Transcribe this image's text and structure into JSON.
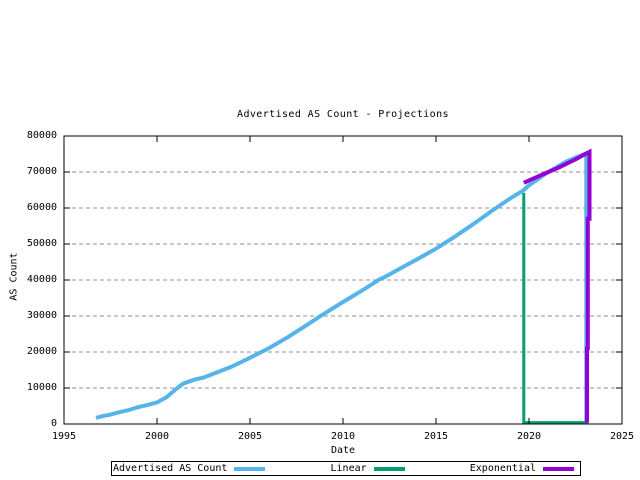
{
  "title": "Advertised AS Count - Projections",
  "chart_data": {
    "type": "line",
    "title": "Advertised AS Count - Projections",
    "xlabel": "Date",
    "ylabel": "AS Count",
    "xlim": [
      1995,
      2025
    ],
    "ylim": [
      0,
      80000
    ],
    "xticks": [
      "1995",
      "2000",
      "2005",
      "2010",
      "2015",
      "2020",
      "2025"
    ],
    "ytick_values": [
      0,
      10000,
      20000,
      30000,
      40000,
      50000,
      60000,
      70000,
      80000
    ],
    "ytick_labels": [
      "0",
      "10000",
      "20000",
      "30000",
      "40000",
      "50000",
      "60000",
      "70000",
      "80000"
    ],
    "xtick_values": [
      1995,
      2000,
      2005,
      2010,
      2015,
      2020,
      2025
    ],
    "grid": "horizontal-dashed",
    "grid_color": "#909090",
    "legend_position": "bottom-center",
    "series": [
      {
        "name": "Advertised AS Count",
        "color": "#56b4e9",
        "width": 4,
        "points": [
          [
            1996.72,
            1700
          ],
          [
            1997,
            2100
          ],
          [
            1997.5,
            2600
          ],
          [
            1998,
            3300
          ],
          [
            1998.5,
            3900
          ],
          [
            1999,
            4700
          ],
          [
            1999.5,
            5300
          ],
          [
            2000,
            6000
          ],
          [
            2000.5,
            7400
          ],
          [
            2001,
            9600
          ],
          [
            2001.4,
            11200
          ],
          [
            2002,
            12300
          ],
          [
            2002.5,
            12900
          ],
          [
            2003,
            13900
          ],
          [
            2004,
            15900
          ],
          [
            2005,
            18400
          ],
          [
            2006,
            21000
          ],
          [
            2007,
            24000
          ],
          [
            2008,
            27300
          ],
          [
            2009,
            30700
          ],
          [
            2010,
            33900
          ],
          [
            2011,
            37000
          ],
          [
            2012,
            40300
          ],
          [
            2012.2,
            40700
          ],
          [
            2013,
            43000
          ],
          [
            2014,
            45800
          ],
          [
            2015,
            48700
          ],
          [
            2016,
            52000
          ],
          [
            2017,
            55500
          ],
          [
            2018,
            59200
          ],
          [
            2019,
            62700
          ],
          [
            2019.7,
            64900
          ],
          [
            2020,
            66300
          ],
          [
            2021,
            69900
          ],
          [
            2022,
            72900
          ],
          [
            2023.08,
            75200
          ],
          [
            2023.08,
            400
          ]
        ]
      },
      {
        "name": "Linear",
        "color": "#009e73",
        "width": 3,
        "points": [
          [
            2019.72,
            64200
          ],
          [
            2019.72,
            400
          ],
          [
            2023.2,
            400
          ]
        ]
      },
      {
        "name": "Exponential",
        "color": "#9400d3",
        "width": 4,
        "points": [
          [
            2019.72,
            67000
          ],
          [
            2020.5,
            68800
          ],
          [
            2021.5,
            71000
          ],
          [
            2022.5,
            73500
          ],
          [
            2023.25,
            75600
          ],
          [
            2023.25,
            57000
          ],
          [
            2023.16,
            57000
          ],
          [
            2023.16,
            21000
          ],
          [
            2023.12,
            21000
          ],
          [
            2023.12,
            400
          ]
        ]
      }
    ]
  }
}
